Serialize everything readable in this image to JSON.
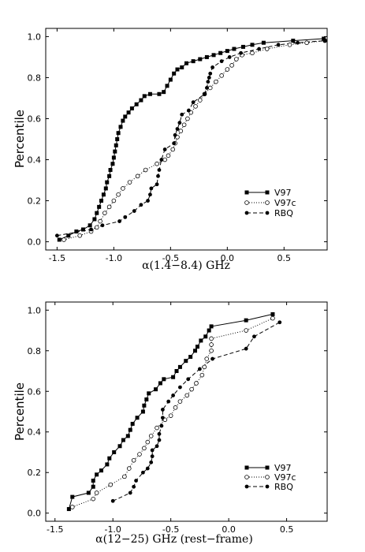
{
  "chart_data": [
    {
      "type": "line",
      "xlabel": "α(1.4−8.4) GHz",
      "ylabel": "Percentile",
      "xlim": [
        -1.6,
        0.88
      ],
      "ylim": [
        -0.04,
        1.04
      ],
      "xticks": [
        "-1.5",
        "-1.0",
        "-0.5",
        "0.0",
        "0.5"
      ],
      "yticks": [
        "0.0",
        "0.2",
        "0.4",
        "0.6",
        "0.8",
        "1.0"
      ],
      "legend_position": "lower-right",
      "series": [
        {
          "name": "V97",
          "marker": "square",
          "line": "solid",
          "points": [
            [
              -1.48,
              0.01
            ],
            [
              -1.4,
              0.03
            ],
            [
              -1.33,
              0.05
            ],
            [
              -1.27,
              0.06
            ],
            [
              -1.21,
              0.08
            ],
            [
              -1.17,
              0.11
            ],
            [
              -1.15,
              0.14
            ],
            [
              -1.13,
              0.17
            ],
            [
              -1.11,
              0.2
            ],
            [
              -1.09,
              0.23
            ],
            [
              -1.07,
              0.26
            ],
            [
              -1.06,
              0.29
            ],
            [
              -1.04,
              0.32
            ],
            [
              -1.03,
              0.35
            ],
            [
              -1.01,
              0.38
            ],
            [
              -1.0,
              0.41
            ],
            [
              -0.99,
              0.44
            ],
            [
              -0.98,
              0.47
            ],
            [
              -0.97,
              0.5
            ],
            [
              -0.96,
              0.53
            ],
            [
              -0.94,
              0.56
            ],
            [
              -0.92,
              0.59
            ],
            [
              -0.9,
              0.61
            ],
            [
              -0.87,
              0.63
            ],
            [
              -0.84,
              0.65
            ],
            [
              -0.8,
              0.67
            ],
            [
              -0.76,
              0.69
            ],
            [
              -0.73,
              0.71
            ],
            [
              -0.68,
              0.72
            ],
            [
              -0.6,
              0.72
            ],
            [
              -0.56,
              0.73
            ],
            [
              -0.53,
              0.76
            ],
            [
              -0.5,
              0.79
            ],
            [
              -0.47,
              0.82
            ],
            [
              -0.44,
              0.84
            ],
            [
              -0.4,
              0.85
            ],
            [
              -0.36,
              0.87
            ],
            [
              -0.3,
              0.88
            ],
            [
              -0.24,
              0.89
            ],
            [
              -0.18,
              0.9
            ],
            [
              -0.12,
              0.91
            ],
            [
              -0.06,
              0.92
            ],
            [
              0.0,
              0.93
            ],
            [
              0.06,
              0.94
            ],
            [
              0.14,
              0.95
            ],
            [
              0.22,
              0.96
            ],
            [
              0.32,
              0.97
            ],
            [
              0.58,
              0.98
            ],
            [
              0.85,
              0.99
            ]
          ]
        },
        {
          "name": "V97c",
          "marker": "open-circle",
          "line": "dotted",
          "points": [
            [
              -1.44,
              0.01
            ],
            [
              -1.3,
              0.03
            ],
            [
              -1.2,
              0.05
            ],
            [
              -1.15,
              0.07
            ],
            [
              -1.12,
              0.1
            ],
            [
              -1.08,
              0.14
            ],
            [
              -1.04,
              0.17
            ],
            [
              -1.0,
              0.2
            ],
            [
              -0.96,
              0.23
            ],
            [
              -0.92,
              0.26
            ],
            [
              -0.86,
              0.29
            ],
            [
              -0.79,
              0.32
            ],
            [
              -0.72,
              0.35
            ],
            [
              -0.62,
              0.38
            ],
            [
              -0.55,
              0.4
            ],
            [
              -0.52,
              0.42
            ],
            [
              -0.48,
              0.45
            ],
            [
              -0.46,
              0.48
            ],
            [
              -0.44,
              0.51
            ],
            [
              -0.41,
              0.54
            ],
            [
              -0.38,
              0.57
            ],
            [
              -0.35,
              0.6
            ],
            [
              -0.32,
              0.63
            ],
            [
              -0.28,
              0.66
            ],
            [
              -0.24,
              0.69
            ],
            [
              -0.2,
              0.72
            ],
            [
              -0.15,
              0.75
            ],
            [
              -0.1,
              0.78
            ],
            [
              -0.05,
              0.81
            ],
            [
              0.0,
              0.84
            ],
            [
              0.04,
              0.86
            ],
            [
              0.08,
              0.89
            ],
            [
              0.13,
              0.91
            ],
            [
              0.22,
              0.92
            ],
            [
              0.35,
              0.94
            ],
            [
              0.55,
              0.96
            ],
            [
              0.7,
              0.97
            ],
            [
              0.86,
              0.98
            ]
          ]
        },
        {
          "name": "RBQ",
          "marker": "filled-circle",
          "line": "dashed",
          "points": [
            [
              -1.5,
              0.03
            ],
            [
              -1.2,
              0.06
            ],
            [
              -1.1,
              0.08
            ],
            [
              -0.95,
              0.1
            ],
            [
              -0.9,
              0.12
            ],
            [
              -0.82,
              0.15
            ],
            [
              -0.76,
              0.18
            ],
            [
              -0.7,
              0.2
            ],
            [
              -0.68,
              0.23
            ],
            [
              -0.67,
              0.26
            ],
            [
              -0.62,
              0.28
            ],
            [
              -0.61,
              0.32
            ],
            [
              -0.6,
              0.35
            ],
            [
              -0.58,
              0.4
            ],
            [
              -0.55,
              0.45
            ],
            [
              -0.47,
              0.48
            ],
            [
              -0.46,
              0.52
            ],
            [
              -0.44,
              0.55
            ],
            [
              -0.42,
              0.58
            ],
            [
              -0.4,
              0.62
            ],
            [
              -0.34,
              0.64
            ],
            [
              -0.3,
              0.68
            ],
            [
              -0.2,
              0.72
            ],
            [
              -0.18,
              0.75
            ],
            [
              -0.17,
              0.78
            ],
            [
              -0.16,
              0.8
            ],
            [
              -0.15,
              0.82
            ],
            [
              -0.13,
              0.85
            ],
            [
              -0.05,
              0.88
            ],
            [
              0.02,
              0.9
            ],
            [
              0.12,
              0.92
            ],
            [
              0.28,
              0.94
            ],
            [
              0.45,
              0.96
            ],
            [
              0.62,
              0.97
            ],
            [
              0.86,
              0.98
            ]
          ]
        }
      ]
    },
    {
      "type": "line",
      "xlabel": "α(12−25) GHz (rest−frame)",
      "ylabel": "Percentile",
      "xlim": [
        -1.58,
        0.85
      ],
      "ylim": [
        -0.04,
        1.04
      ],
      "xticks": [
        "-1.5",
        "-1.0",
        "-0.5",
        "0.0",
        "0.5"
      ],
      "yticks": [
        "0.0",
        "0.2",
        "0.4",
        "0.6",
        "0.8",
        "1.0"
      ],
      "legend_position": "lower-right",
      "series": [
        {
          "name": "V97",
          "marker": "square",
          "line": "solid",
          "points": [
            [
              -1.38,
              0.02
            ],
            [
              -1.35,
              0.08
            ],
            [
              -1.21,
              0.1
            ],
            [
              -1.17,
              0.13
            ],
            [
              -1.17,
              0.16
            ],
            [
              -1.14,
              0.19
            ],
            [
              -1.1,
              0.21
            ],
            [
              -1.05,
              0.24
            ],
            [
              -1.03,
              0.27
            ],
            [
              -0.99,
              0.3
            ],
            [
              -0.94,
              0.33
            ],
            [
              -0.91,
              0.36
            ],
            [
              -0.87,
              0.38
            ],
            [
              -0.85,
              0.41
            ],
            [
              -0.83,
              0.44
            ],
            [
              -0.79,
              0.47
            ],
            [
              -0.74,
              0.5
            ],
            [
              -0.73,
              0.53
            ],
            [
              -0.71,
              0.56
            ],
            [
              -0.69,
              0.59
            ],
            [
              -0.63,
              0.61
            ],
            [
              -0.59,
              0.64
            ],
            [
              -0.56,
              0.66
            ],
            [
              -0.48,
              0.67
            ],
            [
              -0.45,
              0.7
            ],
            [
              -0.42,
              0.72
            ],
            [
              -0.37,
              0.75
            ],
            [
              -0.33,
              0.77
            ],
            [
              -0.29,
              0.8
            ],
            [
              -0.27,
              0.82
            ],
            [
              -0.24,
              0.85
            ],
            [
              -0.2,
              0.87
            ],
            [
              -0.17,
              0.9
            ],
            [
              -0.15,
              0.92
            ],
            [
              0.15,
              0.95
            ],
            [
              0.38,
              0.98
            ]
          ]
        },
        {
          "name": "V97c",
          "marker": "open-circle",
          "line": "dotted",
          "points": [
            [
              -1.35,
              0.03
            ],
            [
              -1.17,
              0.07
            ],
            [
              -1.14,
              0.1
            ],
            [
              -1.02,
              0.14
            ],
            [
              -0.9,
              0.18
            ],
            [
              -0.86,
              0.22
            ],
            [
              -0.82,
              0.26
            ],
            [
              -0.77,
              0.29
            ],
            [
              -0.73,
              0.32
            ],
            [
              -0.7,
              0.35
            ],
            [
              -0.67,
              0.38
            ],
            [
              -0.62,
              0.42
            ],
            [
              -0.55,
              0.46
            ],
            [
              -0.5,
              0.48
            ],
            [
              -0.46,
              0.52
            ],
            [
              -0.42,
              0.55
            ],
            [
              -0.36,
              0.58
            ],
            [
              -0.32,
              0.61
            ],
            [
              -0.28,
              0.64
            ],
            [
              -0.23,
              0.68
            ],
            [
              -0.21,
              0.72
            ],
            [
              -0.19,
              0.76
            ],
            [
              -0.15,
              0.8
            ],
            [
              -0.15,
              0.83
            ],
            [
              -0.15,
              0.86
            ],
            [
              0.15,
              0.9
            ],
            [
              0.38,
              0.96
            ]
          ]
        },
        {
          "name": "RBQ",
          "marker": "filled-circle",
          "line": "dashed",
          "points": [
            [
              -1.0,
              0.06
            ],
            [
              -0.85,
              0.1
            ],
            [
              -0.82,
              0.13
            ],
            [
              -0.8,
              0.16
            ],
            [
              -0.74,
              0.2
            ],
            [
              -0.7,
              0.22
            ],
            [
              -0.67,
              0.25
            ],
            [
              -0.66,
              0.28
            ],
            [
              -0.66,
              0.31
            ],
            [
              -0.62,
              0.33
            ],
            [
              -0.6,
              0.36
            ],
            [
              -0.6,
              0.39
            ],
            [
              -0.58,
              0.43
            ],
            [
              -0.57,
              0.47
            ],
            [
              -0.57,
              0.51
            ],
            [
              -0.52,
              0.55
            ],
            [
              -0.48,
              0.58
            ],
            [
              -0.42,
              0.62
            ],
            [
              -0.35,
              0.66
            ],
            [
              -0.25,
              0.71
            ],
            [
              -0.14,
              0.76
            ],
            [
              0.15,
              0.81
            ],
            [
              0.22,
              0.87
            ],
            [
              0.44,
              0.94
            ]
          ]
        }
      ]
    }
  ]
}
